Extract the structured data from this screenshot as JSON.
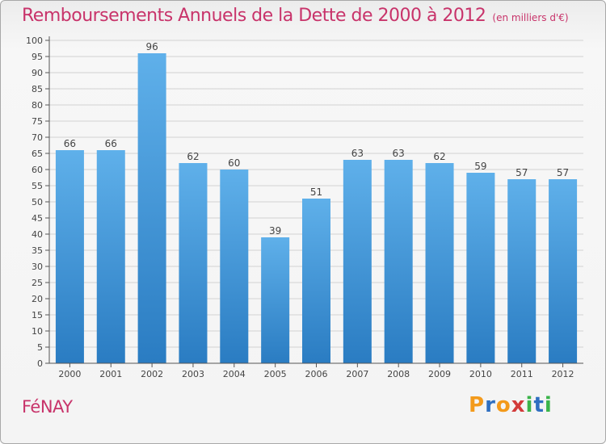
{
  "header": {
    "title": "Remboursements Annuels de la Dette de 2000 à 2012",
    "unit": "(en milliers d'€)"
  },
  "footer": {
    "commune": "FéNAY",
    "logo": {
      "letters": [
        "P",
        "r",
        "o",
        "x",
        "i",
        "t",
        "i"
      ],
      "colors": [
        "#f39a1b",
        "#2f6fc1",
        "#f39a1b",
        "#d23a3a",
        "#3bb44a",
        "#2f6fc1",
        "#3bb44a"
      ]
    }
  },
  "colors": {
    "bar_light": "#5fb0ea",
    "bar_dark": "#2a7cc2",
    "axis": "#555555",
    "grid": "#d2d2d2",
    "title": "#c8336a"
  },
  "chart_data": {
    "type": "bar",
    "title": "Remboursements Annuels de la Dette de 2000 à 2012",
    "categories": [
      "2000",
      "2001",
      "2002",
      "2003",
      "2004",
      "2005",
      "2006",
      "2007",
      "2008",
      "2009",
      "2010",
      "2011",
      "2012"
    ],
    "values": [
      66,
      66,
      96,
      62,
      60,
      39,
      51,
      63,
      63,
      62,
      59,
      57,
      57
    ],
    "ylim": [
      0,
      100
    ],
    "ytick_step": 5,
    "grid": true,
    "xlabel": "",
    "ylabel": ""
  }
}
